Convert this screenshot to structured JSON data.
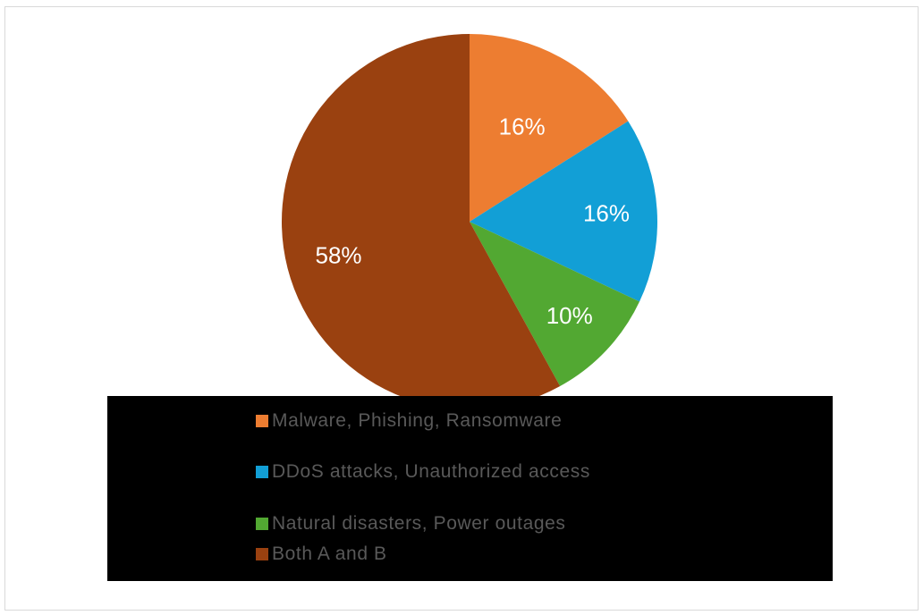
{
  "chart_data": {
    "type": "pie",
    "categories": [
      " Malware, Phishing, Ransomware",
      "DDoS attacks, Unauthorized access",
      "Natural disasters, Power outages",
      "Both A and B"
    ],
    "values": [
      16,
      16,
      10,
      58
    ],
    "data_labels": [
      "16%",
      "16%",
      "10%",
      "58%"
    ],
    "colors": [
      "#ED7D31",
      "#129FD6",
      "#52A832",
      "#9A4110"
    ],
    "label_color": "#ffffff",
    "legend_position": "bottom",
    "title": ""
  }
}
